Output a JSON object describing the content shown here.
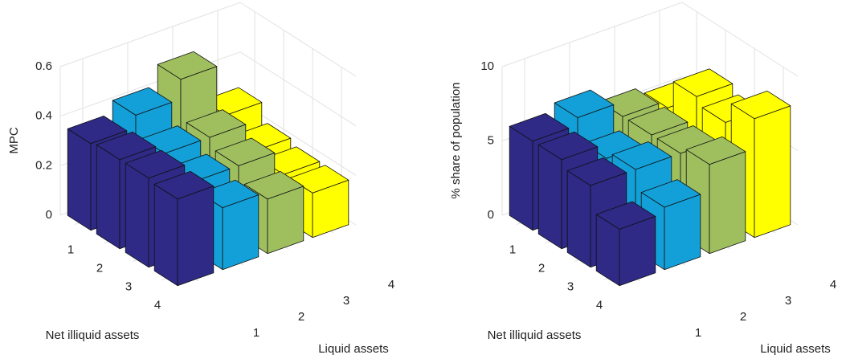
{
  "chart_data": [
    {
      "type": "bar3d",
      "zlabel": "MPC",
      "ylabel": "Net illiquid assets",
      "xlabel": "Liquid assets",
      "xcategories": [
        "1",
        "2",
        "3",
        "4"
      ],
      "ycategories": [
        "1",
        "2",
        "3",
        "4"
      ],
      "colors": [
        "#2e2a86",
        "#13a0d8",
        "#9fbf5f",
        "#ffff00"
      ],
      "values": [
        [
          0.35,
          0.4,
          0.48,
          0.27
        ],
        [
          0.36,
          0.32,
          0.32,
          0.2
        ],
        [
          0.36,
          0.28,
          0.28,
          0.18
        ],
        [
          0.35,
          0.25,
          0.22,
          0.18
        ]
      ],
      "zlim": [
        0,
        0.6
      ],
      "zticks": [
        0,
        0.2,
        0.4,
        0.6
      ],
      "grid": true
    },
    {
      "type": "bar3d",
      "zlabel": "% share of population",
      "ylabel": "Net illiquid assets",
      "xlabel": "Liquid assets",
      "xcategories": [
        "1",
        "2",
        "3",
        "4"
      ],
      "ycategories": [
        "1",
        "2",
        "3",
        "4"
      ],
      "colors": [
        "#2e2a86",
        "#13a0d8",
        "#9fbf5f",
        "#ffff00"
      ],
      "values": [
        [
          6.0,
          6.5,
          5.5,
          5.0
        ],
        [
          6.0,
          5.0,
          5.5,
          7.0
        ],
        [
          5.5,
          5.5,
          5.5,
          6.5
        ],
        [
          3.8,
          4.2,
          6.0,
          8.0
        ]
      ],
      "zlim": [
        0,
        10
      ],
      "zticks": [
        0,
        5,
        10
      ],
      "grid": true
    }
  ]
}
